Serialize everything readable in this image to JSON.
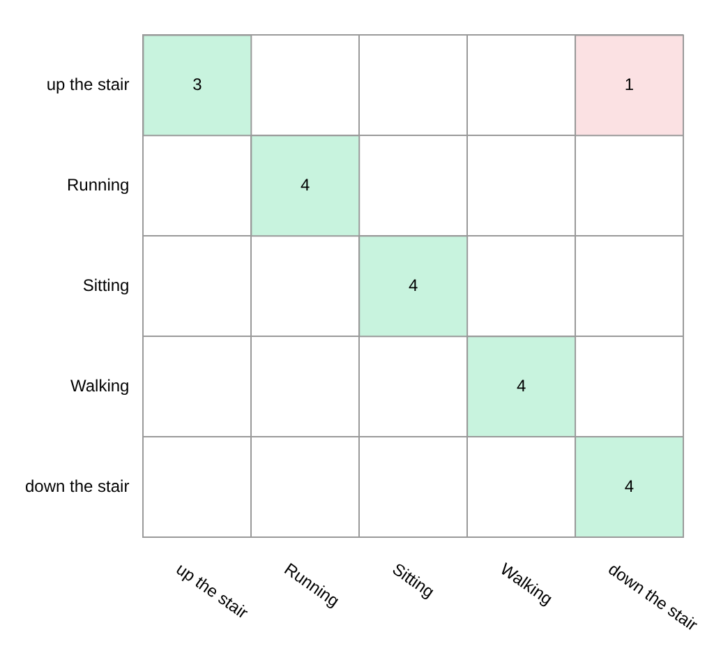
{
  "chart_data": {
    "type": "heatmap",
    "categories": [
      "up the stair",
      "Running",
      "Sitting",
      "Walking",
      "down the stair"
    ],
    "y_categories": [
      "up the stair",
      "Running",
      "Sitting",
      "Walking",
      "down the stair"
    ],
    "cells": [
      [
        3,
        null,
        null,
        null,
        1
      ],
      [
        null,
        4,
        null,
        null,
        null
      ],
      [
        null,
        null,
        4,
        null,
        null
      ],
      [
        null,
        null,
        null,
        4,
        null
      ],
      [
        null,
        null,
        null,
        null,
        4
      ]
    ],
    "colors": [
      "#c8f3de",
      "#fbe1e3"
    ],
    "data_labels": true,
    "grid": true
  }
}
